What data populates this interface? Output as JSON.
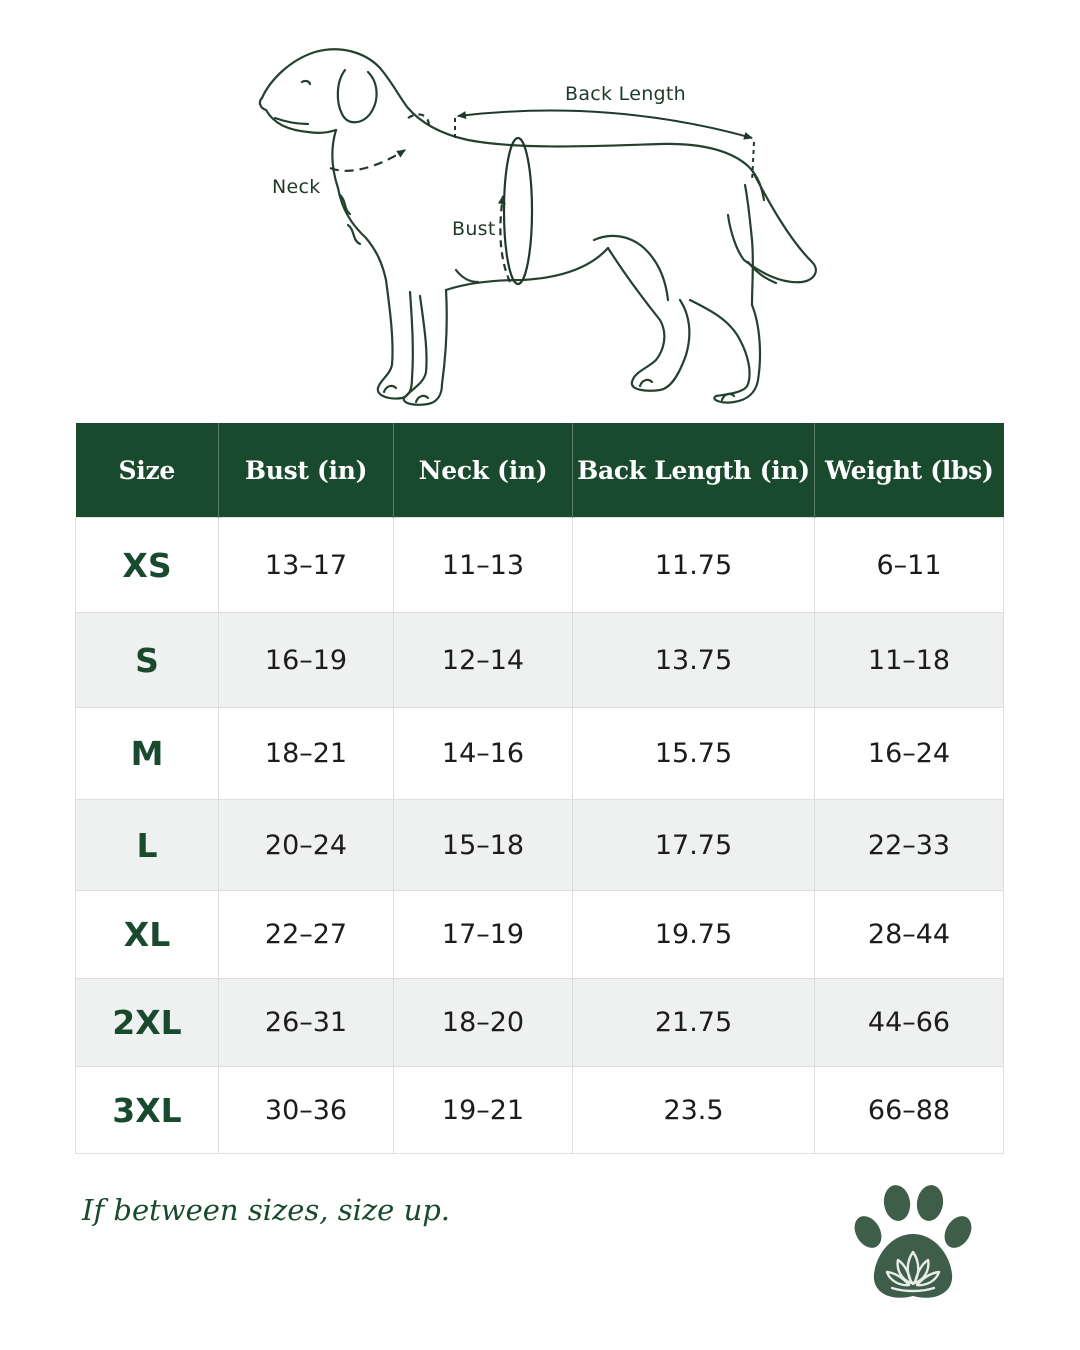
{
  "diagram": {
    "labels": {
      "back_length": "Back Length",
      "neck": "Neck",
      "bust": "Bust"
    }
  },
  "table": {
    "headers": [
      "Size",
      "Bust (in)",
      "Neck (in)",
      "Back Length (in)",
      "Weight (lbs)"
    ],
    "rows": [
      {
        "size": "XS",
        "bust": "13–17",
        "neck": "11–13",
        "back_length": "11.75",
        "weight": "6–11"
      },
      {
        "size": "S",
        "bust": "16–19",
        "neck": "12–14",
        "back_length": "13.75",
        "weight": "11–18"
      },
      {
        "size": "M",
        "bust": "18–21",
        "neck": "14–16",
        "back_length": "15.75",
        "weight": "16–24"
      },
      {
        "size": "L",
        "bust": "20–24",
        "neck": "15–18",
        "back_length": "17.75",
        "weight": "22–33"
      },
      {
        "size": "XL",
        "bust": "22–27",
        "neck": "17–19",
        "back_length": "19.75",
        "weight": "28–44"
      },
      {
        "size": "2XL",
        "bust": "26–31",
        "neck": "18–20",
        "back_length": "21.75",
        "weight": "44–66"
      },
      {
        "size": "3XL",
        "bust": "30–36",
        "neck": "19–21",
        "back_length": "23.5",
        "weight": "66–88"
      }
    ]
  },
  "note": "If between sizes, size up.",
  "logo": {
    "icon": "paw-lotus-icon"
  },
  "colors": {
    "brand_green": "#1a4a2e",
    "row_alt": "#eef1ef",
    "logo_green": "#3f5e4a"
  }
}
